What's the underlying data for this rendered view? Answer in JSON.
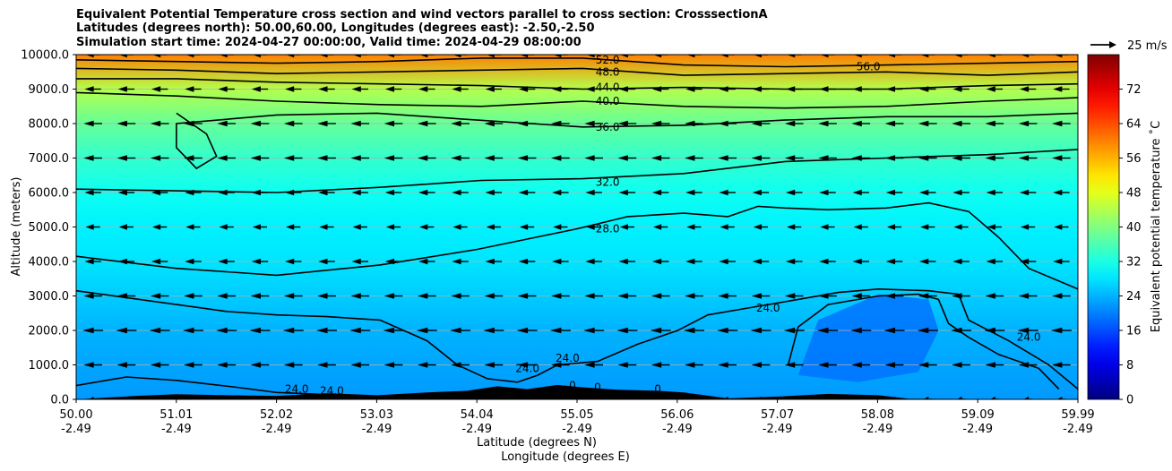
{
  "header": {
    "line1": "Equivalent Potential Temperature cross section and wind vectors parallel to cross section: CrosssectionA",
    "line2": "Latitudes (degrees north): 50.00,60.00, Longitudes (degrees east): -2.50,-2.50",
    "line3": "Simulation start time: 2024-04-27 00:00:00, Valid time: 2024-04-29 08:00:00"
  },
  "chart_data": {
    "type": "heatmap",
    "subtype": "filled contour cross-section with wind vectors",
    "xlabel": "Latitude (degrees N)",
    "xlabel2": "Longitude (degrees E)",
    "ylabel": "Altitude (meters)",
    "ylim": [
      0,
      10000
    ],
    "yticks": [
      "0.0",
      "1000.0",
      "2000.0",
      "3000.0",
      "4000.0",
      "5000.0",
      "6000.0",
      "7000.0",
      "8000.0",
      "9000.0",
      "10000.0"
    ],
    "xticks_lat": [
      "50.00",
      "51.01",
      "52.02",
      "53.03",
      "54.04",
      "55.05",
      "56.06",
      "57.07",
      "58.08",
      "59.09",
      "59.99"
    ],
    "xticks_lon": [
      "-2.49",
      "-2.49",
      "-2.49",
      "-2.49",
      "-2.49",
      "-2.49",
      "-2.49",
      "-2.49",
      "-2.49",
      "-2.49",
      "-2.49"
    ],
    "grid": true,
    "colorbar": {
      "label": "Equivalent potential temperature ˚C",
      "range": [
        0,
        80
      ],
      "ticks": [
        "0",
        "8",
        "16",
        "24",
        "32",
        "40",
        "48",
        "56",
        "64",
        "72"
      ]
    },
    "quiver_key": {
      "label": "25 m/s",
      "speed": 25
    },
    "contour_labels": [
      "24.0",
      "24.0",
      "24.0",
      "24.0",
      "24.0",
      "24.0",
      "28.0",
      "32.0",
      "36.0",
      "40.0",
      "44.0",
      "48.0",
      "52.0",
      "56.0",
      "0",
      "0",
      "0"
    ],
    "theta_e_profile": [
      {
        "alt": 0,
        "value": 22
      },
      {
        "alt": 1000,
        "value": 23
      },
      {
        "alt": 2000,
        "value": 24
      },
      {
        "alt": 3000,
        "value": 26
      },
      {
        "alt": 4000,
        "value": 28
      },
      {
        "alt": 5000,
        "value": 29
      },
      {
        "alt": 6000,
        "value": 31
      },
      {
        "alt": 7000,
        "value": 34
      },
      {
        "alt": 8000,
        "value": 38
      },
      {
        "alt": 9000,
        "value": 44
      },
      {
        "alt": 10000,
        "value": 60
      }
    ],
    "isolines": [
      {
        "level": 24,
        "points": [
          [
            50.0,
            3150
          ],
          [
            50.5,
            2950
          ],
          [
            51.0,
            2750
          ],
          [
            51.5,
            2550
          ],
          [
            52.0,
            2450
          ],
          [
            52.5,
            2400
          ],
          [
            53.03,
            2300
          ],
          [
            53.5,
            1700
          ],
          [
            53.8,
            1000
          ],
          [
            54.1,
            600
          ],
          [
            54.4,
            500
          ],
          [
            54.6,
            700
          ],
          [
            54.8,
            1000
          ],
          [
            55.2,
            1100
          ],
          [
            55.6,
            1600
          ],
          [
            56.0,
            2000
          ],
          [
            56.3,
            2450
          ],
          [
            56.7,
            2650
          ],
          [
            57.2,
            2900
          ],
          [
            57.6,
            3100
          ],
          [
            58.0,
            3200
          ],
          [
            58.5,
            3150
          ],
          [
            58.8,
            3050
          ],
          [
            58.9,
            2300
          ],
          [
            59.3,
            1700
          ],
          [
            59.7,
            1000
          ],
          [
            59.99,
            300
          ]
        ]
      },
      {
        "level": 24,
        "points": [
          [
            57.1,
            1000
          ],
          [
            57.2,
            2100
          ],
          [
            57.5,
            2750
          ],
          [
            58.0,
            3000
          ],
          [
            58.4,
            3050
          ],
          [
            58.6,
            2900
          ],
          [
            58.7,
            2200
          ],
          [
            58.9,
            1800
          ],
          [
            59.2,
            1300
          ],
          [
            59.6,
            900
          ],
          [
            59.8,
            300
          ]
        ]
      },
      {
        "level": 24,
        "points": [
          [
            50.0,
            400
          ],
          [
            50.5,
            650
          ],
          [
            51.0,
            550
          ],
          [
            51.6,
            350
          ],
          [
            52.0,
            200
          ],
          [
            52.4,
            150
          ],
          [
            52.7,
            50
          ]
        ]
      },
      {
        "level": 28,
        "points": [
          [
            50.0,
            4150
          ],
          [
            51.0,
            3800
          ],
          [
            52.0,
            3600
          ],
          [
            53.03,
            3900
          ],
          [
            54.0,
            4350
          ],
          [
            55.0,
            4950
          ],
          [
            55.5,
            5300
          ],
          [
            56.06,
            5400
          ],
          [
            56.5,
            5300
          ],
          [
            56.8,
            5600
          ],
          [
            57.07,
            5550
          ],
          [
            57.5,
            5500
          ],
          [
            58.08,
            5550
          ],
          [
            58.5,
            5700
          ],
          [
            58.9,
            5450
          ],
          [
            59.2,
            4700
          ],
          [
            59.5,
            3800
          ],
          [
            59.99,
            3200
          ]
        ]
      },
      {
        "level": 32,
        "points": [
          [
            50.0,
            6100
          ],
          [
            51.0,
            6050
          ],
          [
            52.0,
            6000
          ],
          [
            53.03,
            6150
          ],
          [
            54.04,
            6350
          ],
          [
            55.05,
            6400
          ],
          [
            56.06,
            6550
          ],
          [
            57.07,
            6900
          ],
          [
            58.08,
            7000
          ],
          [
            59.09,
            7100
          ],
          [
            59.99,
            7250
          ]
        ]
      },
      {
        "level": 36,
        "points": [
          [
            51.0,
            8300
          ],
          [
            51.3,
            7700
          ],
          [
            51.4,
            7050
          ],
          [
            51.2,
            6700
          ],
          [
            51.0,
            7300
          ],
          [
            51.0,
            8000
          ],
          [
            52.0,
            8250
          ],
          [
            53.0,
            8300
          ],
          [
            54.0,
            8100
          ],
          [
            55.05,
            7900
          ],
          [
            56.06,
            7950
          ],
          [
            57.07,
            8100
          ],
          [
            58.08,
            8200
          ],
          [
            59.09,
            8200
          ],
          [
            59.99,
            8300
          ]
        ]
      },
      {
        "level": 40,
        "points": [
          [
            50.0,
            8900
          ],
          [
            51.0,
            8800
          ],
          [
            52.0,
            8650
          ],
          [
            53.03,
            8550
          ],
          [
            54.04,
            8500
          ],
          [
            55.05,
            8650
          ],
          [
            56.06,
            8500
          ],
          [
            57.07,
            8450
          ],
          [
            58.08,
            8500
          ],
          [
            59.09,
            8650
          ],
          [
            59.99,
            8750
          ]
        ]
      },
      {
        "level": 44,
        "points": [
          [
            50.0,
            9300
          ],
          [
            51.0,
            9300
          ],
          [
            52.0,
            9200
          ],
          [
            53.03,
            9150
          ],
          [
            54.04,
            9100
          ],
          [
            55.05,
            9000
          ],
          [
            56.06,
            9050
          ],
          [
            57.07,
            9000
          ],
          [
            58.08,
            9000
          ],
          [
            59.09,
            9100
          ],
          [
            59.99,
            9150
          ]
        ]
      },
      {
        "level": 48,
        "points": [
          [
            50.0,
            9600
          ],
          [
            51.0,
            9550
          ],
          [
            52.0,
            9450
          ],
          [
            53.03,
            9500
          ],
          [
            54.04,
            9550
          ],
          [
            55.05,
            9600
          ],
          [
            56.06,
            9400
          ],
          [
            57.07,
            9450
          ],
          [
            58.08,
            9500
          ],
          [
            59.09,
            9400
          ],
          [
            59.99,
            9500
          ]
        ]
      },
      {
        "level": 52,
        "points": [
          [
            50.0,
            9850
          ],
          [
            51.0,
            9800
          ],
          [
            52.0,
            9750
          ],
          [
            53.03,
            9800
          ],
          [
            54.04,
            9900
          ],
          [
            55.05,
            9900
          ],
          [
            56.06,
            9700
          ],
          [
            57.07,
            9650
          ],
          [
            58.08,
            9700
          ],
          [
            59.09,
            9750
          ],
          [
            59.99,
            9800
          ]
        ]
      }
    ],
    "weak_core": [
      [
        57.2,
        700
      ],
      [
        57.4,
        2300
      ],
      [
        58.0,
        3050
      ],
      [
        58.5,
        2900
      ],
      [
        58.6,
        2000
      ],
      [
        58.4,
        800
      ],
      [
        57.8,
        500
      ]
    ],
    "terrain": [
      [
        50.0,
        0
      ],
      [
        50.6,
        100
      ],
      [
        51.0,
        150
      ],
      [
        51.5,
        120
      ],
      [
        52.0,
        100
      ],
      [
        52.5,
        180
      ],
      [
        53.0,
        120
      ],
      [
        53.5,
        200
      ],
      [
        53.9,
        250
      ],
      [
        54.2,
        380
      ],
      [
        54.5,
        300
      ],
      [
        54.8,
        420
      ],
      [
        55.05,
        350
      ],
      [
        55.4,
        280
      ],
      [
        55.8,
        250
      ],
      [
        56.06,
        200
      ],
      [
        56.5,
        30
      ],
      [
        57.0,
        80
      ],
      [
        57.5,
        160
      ],
      [
        58.0,
        120
      ],
      [
        58.3,
        20
      ],
      [
        59.99,
        0
      ]
    ],
    "wind_u": [
      {
        "alt": 0,
        "u": -4
      },
      {
        "alt": 1000,
        "u": -9
      },
      {
        "alt": 2000,
        "u": -10
      },
      {
        "alt": 3000,
        "u": -9
      },
      {
        "alt": 4000,
        "u": -8
      },
      {
        "alt": 5000,
        "u": -7
      },
      {
        "alt": 6000,
        "u": -8
      },
      {
        "alt": 7000,
        "u": -9
      },
      {
        "alt": 8000,
        "u": -9
      },
      {
        "alt": 9000,
        "u": -8
      },
      {
        "alt": 10000,
        "u": -7
      }
    ]
  }
}
